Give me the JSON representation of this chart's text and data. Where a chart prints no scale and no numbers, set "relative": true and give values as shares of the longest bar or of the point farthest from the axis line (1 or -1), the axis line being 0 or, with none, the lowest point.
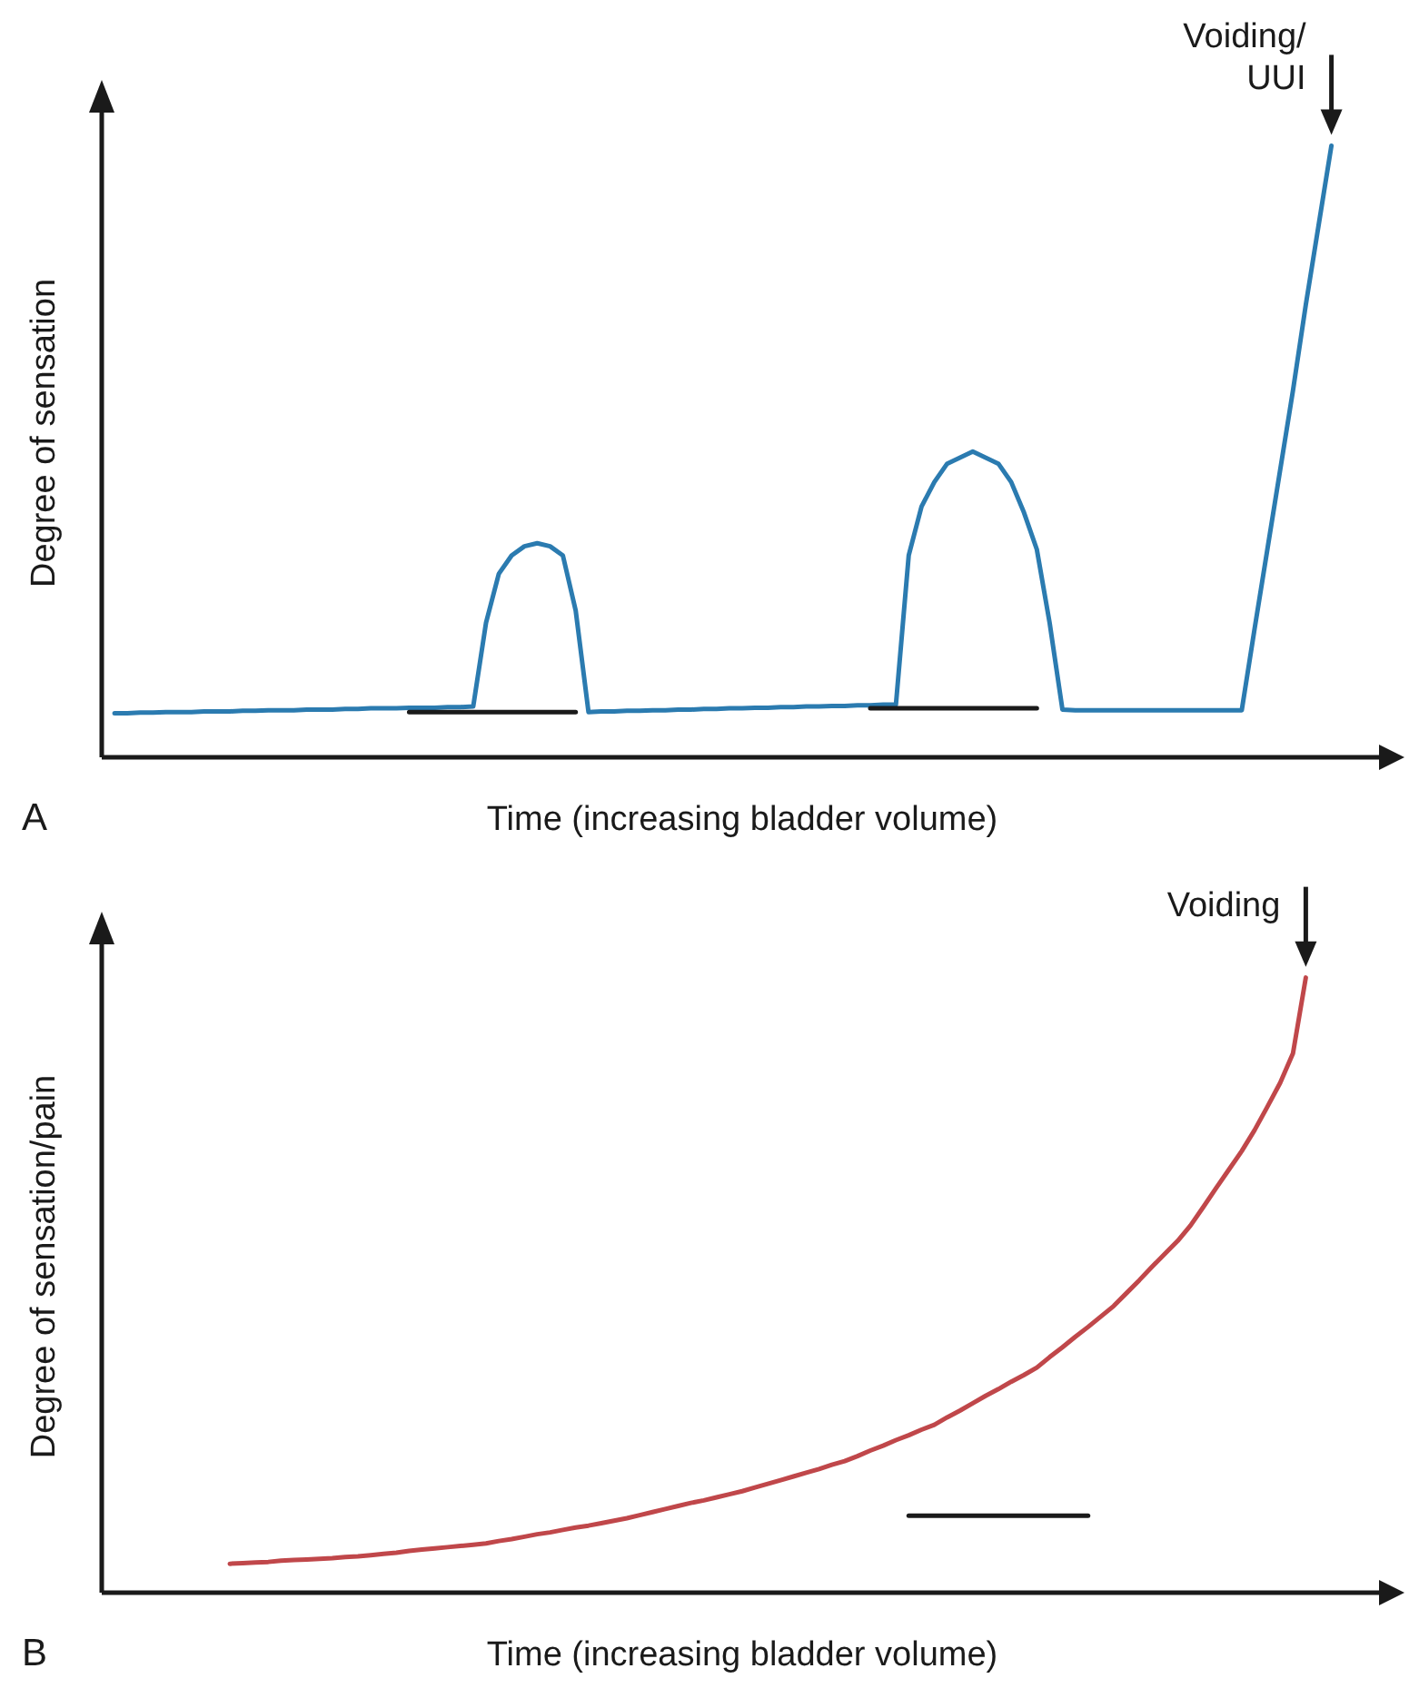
{
  "chart_data": [
    {
      "type": "line",
      "relative": true,
      "xlabel": "Time (increasing bladder volume)",
      "ylabel": "Degree of sensation",
      "annotations": [
        "Voiding/ UUI",
        "A"
      ],
      "categories": [
        null,
        null,
        null,
        null,
        null,
        null,
        null,
        null,
        null,
        null,
        null,
        null,
        null,
        null,
        null,
        null,
        null,
        null,
        null,
        null,
        null,
        null,
        null,
        null,
        null,
        null,
        null,
        null,
        null,
        null,
        null,
        null,
        null,
        null,
        null,
        null,
        null,
        null,
        null,
        null,
        null,
        null,
        null,
        null,
        null,
        null,
        null,
        null,
        null,
        null,
        null,
        null,
        null,
        null,
        null,
        null,
        null,
        null,
        null,
        null,
        null,
        null,
        null,
        null,
        null,
        null,
        null,
        null,
        null,
        null,
        null,
        null,
        null,
        null,
        null,
        null,
        null,
        null,
        null,
        null,
        null,
        null,
        null,
        null,
        null,
        null,
        null,
        null,
        null,
        null,
        null,
        null,
        null,
        null,
        null,
        null,
        null,
        null,
        null,
        null,
        null
      ],
      "series": [
        {
          "color": "#2b7bb0",
          "values": [
            null,
            0.072,
            0.072,
            0.073,
            0.073,
            0.074,
            0.074,
            0.074,
            0.075,
            0.075,
            0.075,
            0.076,
            0.076,
            0.077,
            0.077,
            0.077,
            0.078,
            0.078,
            0.078,
            0.079,
            0.079,
            0.08,
            0.08,
            0.08,
            0.081,
            0.081,
            0.081,
            0.082,
            0.082,
            0.083,
            0.22,
            0.3,
            0.33,
            0.345,
            0.35,
            0.345,
            0.33,
            0.24,
            0.074,
            0.075,
            0.075,
            0.076,
            0.076,
            0.077,
            0.077,
            0.078,
            0.078,
            0.079,
            0.079,
            0.08,
            0.08,
            0.081,
            0.081,
            0.082,
            0.082,
            0.083,
            0.083,
            0.084,
            0.084,
            0.085,
            0.085,
            0.086,
            0.086,
            0.33,
            0.41,
            0.45,
            0.48,
            0.49,
            0.5,
            0.49,
            0.48,
            0.45,
            0.4,
            0.34,
            0.22,
            0.078,
            0.077,
            0.077,
            0.077,
            0.077,
            0.077,
            0.077,
            0.077,
            0.077,
            0.077,
            0.077,
            0.077,
            0.077,
            0.077,
            0.077,
            0.21,
            0.34,
            0.47,
            0.6,
            0.74,
            0.87,
            1.0,
            null,
            null,
            null,
            null
          ]
        },
        {
          "color": "#1a1a1a",
          "values": [
            null,
            null,
            null,
            null,
            null,
            null,
            null,
            null,
            null,
            null,
            null,
            null,
            null,
            null,
            null,
            null,
            null,
            null,
            null,
            null,
            null,
            null,
            null,
            null,
            0.074,
            0.074,
            0.074,
            0.074,
            0.074,
            0.074,
            0.074,
            0.074,
            0.074,
            0.074,
            0.074,
            0.074,
            0.074,
            0.074,
            null,
            null,
            null,
            null,
            null,
            null,
            null,
            null,
            null,
            null,
            null,
            null,
            null,
            null,
            null,
            null,
            null,
            null,
            null,
            null,
            null,
            null,
            0.08,
            0.08,
            0.08,
            0.08,
            0.08,
            0.08,
            0.08,
            0.08,
            0.08,
            0.08,
            0.08,
            0.08,
            0.08,
            0.08,
            null,
            null,
            null,
            null,
            null,
            null,
            null,
            null,
            null,
            null,
            null,
            null,
            null,
            null,
            null,
            null,
            null,
            null,
            null,
            null,
            null,
            null,
            null,
            null,
            null,
            null,
            null
          ]
        }
      ]
    },
    {
      "type": "line",
      "relative": true,
      "xlabel": "Time (increasing bladder volume)",
      "ylabel": "Degree of sensation/pain",
      "annotations": [
        "Voiding",
        "B"
      ],
      "categories": [
        null,
        null,
        null,
        null,
        null,
        null,
        null,
        null,
        null,
        null,
        null,
        null,
        null,
        null,
        null,
        null,
        null,
        null,
        null,
        null,
        null,
        null,
        null,
        null,
        null,
        null,
        null,
        null,
        null,
        null,
        null,
        null,
        null,
        null,
        null,
        null,
        null,
        null,
        null,
        null,
        null,
        null,
        null,
        null,
        null,
        null,
        null,
        null,
        null,
        null,
        null,
        null,
        null,
        null,
        null,
        null,
        null,
        null,
        null,
        null,
        null,
        null,
        null,
        null,
        null,
        null,
        null,
        null,
        null,
        null,
        null,
        null,
        null,
        null,
        null,
        null,
        null,
        null,
        null,
        null,
        null,
        null,
        null,
        null,
        null,
        null,
        null,
        null,
        null,
        null,
        null,
        null,
        null,
        null,
        null,
        null,
        null,
        null,
        null,
        null,
        null
      ],
      "series": [
        {
          "color": "#c0474a",
          "values": [
            null,
            null,
            null,
            null,
            null,
            null,
            null,
            null,
            null,
            null,
            0.047,
            0.048,
            0.049,
            0.05,
            0.052,
            0.053,
            0.054,
            0.055,
            0.056,
            0.058,
            0.059,
            0.061,
            0.063,
            0.065,
            0.068,
            0.07,
            0.072,
            0.074,
            0.076,
            0.078,
            0.08,
            0.084,
            0.087,
            0.091,
            0.095,
            0.098,
            0.102,
            0.106,
            0.109,
            0.113,
            0.117,
            0.121,
            0.126,
            0.131,
            0.136,
            0.141,
            0.146,
            0.15,
            0.155,
            0.16,
            0.165,
            0.171,
            0.177,
            0.183,
            0.189,
            0.195,
            0.201,
            0.208,
            0.214,
            0.222,
            0.231,
            0.239,
            0.248,
            0.256,
            0.265,
            0.273,
            0.285,
            0.296,
            0.308,
            0.32,
            0.331,
            0.343,
            0.354,
            0.366,
            0.383,
            0.399,
            0.416,
            0.432,
            0.449,
            0.466,
            0.487,
            0.508,
            0.53,
            0.551,
            0.572,
            0.597,
            0.627,
            0.658,
            0.688,
            0.718,
            0.752,
            0.79,
            0.829,
            0.877,
            1.0,
            null,
            null,
            null,
            null,
            null,
            null
          ]
        },
        {
          "color": "#1a1a1a",
          "values": [
            null,
            null,
            null,
            null,
            null,
            null,
            null,
            null,
            null,
            null,
            null,
            null,
            null,
            null,
            null,
            null,
            null,
            null,
            null,
            null,
            null,
            null,
            null,
            null,
            null,
            null,
            null,
            null,
            null,
            null,
            null,
            null,
            null,
            null,
            null,
            null,
            null,
            null,
            null,
            null,
            null,
            null,
            null,
            null,
            null,
            null,
            null,
            null,
            null,
            null,
            null,
            null,
            null,
            null,
            null,
            null,
            null,
            null,
            null,
            null,
            null,
            null,
            null,
            0.125,
            0.125,
            0.125,
            0.125,
            0.125,
            0.125,
            0.125,
            0.125,
            0.125,
            0.125,
            0.125,
            0.125,
            0.125,
            0.125,
            0.125,
            null,
            null,
            null,
            null,
            null,
            null,
            null,
            null,
            null,
            null,
            null,
            null,
            null,
            null,
            null,
            null,
            null,
            null,
            null,
            null,
            null,
            null,
            null
          ]
        }
      ]
    }
  ]
}
